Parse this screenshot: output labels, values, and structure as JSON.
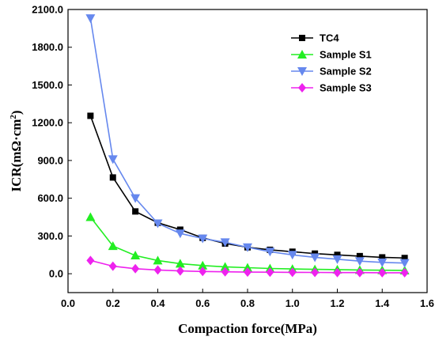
{
  "chart_data": {
    "type": "line",
    "xlabel": "Compaction force(MPa)",
    "ylabel_main": "ICR(mΩ·cm",
    "ylabel_sup": "2",
    "ylabel_close": ")",
    "xlim": [
      0.0,
      1.6
    ],
    "ylim": [
      -150,
      2100
    ],
    "xticks": [
      0.0,
      0.2,
      0.4,
      0.6,
      0.8,
      1.0,
      1.2,
      1.4,
      1.6
    ],
    "xtick_labels": [
      "0.0",
      "0.2",
      "0.4",
      "0.6",
      "0.8",
      "1.0",
      "1.2",
      "1.4",
      "1.6"
    ],
    "yticks": [
      0,
      300,
      600,
      900,
      1200,
      1500,
      1800,
      2100
    ],
    "ytick_labels": [
      "0.0",
      "300.0",
      "600.0",
      "900.0",
      "1200.0",
      "1500.0",
      "1800.0",
      "2100.0"
    ],
    "grid": false,
    "legend_position": "top-right",
    "x": [
      0.1,
      0.2,
      0.3,
      0.4,
      0.5,
      0.6,
      0.7,
      0.8,
      0.9,
      1.0,
      1.1,
      1.2,
      1.3,
      1.4,
      1.5
    ],
    "series": [
      {
        "name": "TC4",
        "color": "#000000",
        "marker": "square",
        "values": [
          1255,
          765,
          495,
          405,
          350,
          285,
          240,
          210,
          190,
          175,
          160,
          150,
          140,
          130,
          125
        ]
      },
      {
        "name": "Sample S1",
        "color": "#22ee22",
        "marker": "triangle-up",
        "values": [
          450,
          220,
          145,
          105,
          80,
          65,
          55,
          48,
          42,
          38,
          35,
          33,
          30,
          28,
          26
        ]
      },
      {
        "name": "Sample S2",
        "color": "#6688ee",
        "marker": "triangle-down",
        "values": [
          2030,
          910,
          600,
          400,
          320,
          280,
          250,
          210,
          175,
          150,
          130,
          115,
          100,
          90,
          85
        ]
      },
      {
        "name": "Sample S3",
        "color": "#ee22ee",
        "marker": "diamond",
        "values": [
          105,
          60,
          40,
          30,
          22,
          18,
          15,
          13,
          12,
          11,
          10,
          9,
          9,
          8,
          8
        ]
      }
    ]
  }
}
